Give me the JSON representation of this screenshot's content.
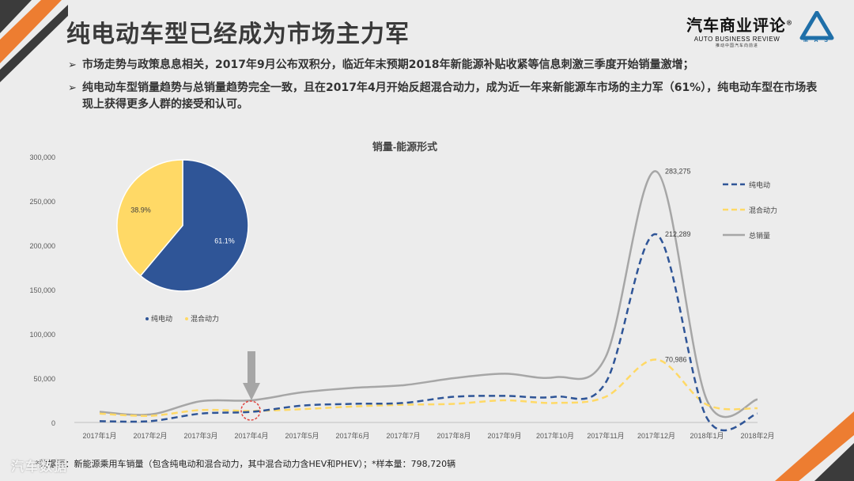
{
  "slide": {
    "title": "纯电动车型已经成为市场主力军",
    "logo": {
      "main": "汽车商业评论",
      "registered": "®",
      "english": "AUTO BUSINESS REVIEW",
      "subtitle": "推动中国汽车向前进",
      "mas": "M A S"
    },
    "bullets": [
      "市场走势与政策息息相关，2017年9月公布双积分，临近年末预期2018年新能源补贴收紧等信息刺激三季度开始销量激增；",
      "纯电动车型销量趋势与总销量趋势完全一致，且在2017年4月开始反超混合动力，成为近一年来新能源车市场的主力军（61%），纯电动车型在市场表现上获得更多人群的接受和认可。"
    ],
    "bullet_marker": "➢",
    "footnote": "*数据源：新能源乘用车销量（包含纯电动和混合动力，其中混合动力含HEV和PHEV）；*样本量：798,720辆",
    "watermark": "汽车数据"
  },
  "colors": {
    "blue": "#2f5597",
    "yellow": "#ffd966",
    "gray": "#a6a6a6",
    "orange": "#ed7d31",
    "dark": "#3b3b3b",
    "arrow": "#a6a6a6",
    "circle": "#e0443e"
  },
  "chart_data": [
    {
      "type": "line",
      "title": "销量-能源形式",
      "categories": [
        "2017年1月",
        "2017年2月",
        "2017年3月",
        "2017年4月",
        "2017年5月",
        "2017年6月",
        "2017年7月",
        "2017年8月",
        "2017年9月",
        "2017年10月",
        "2017年11月",
        "2017年12月",
        "2018年1月",
        "2018年2月"
      ],
      "ylim": [
        0,
        300000
      ],
      "yticks": [
        0,
        50000,
        100000,
        150000,
        200000,
        250000,
        300000
      ],
      "ytick_labels": [
        "0",
        "50,000",
        "100,000",
        "150,000",
        "200,000",
        "250,000",
        "300,000"
      ],
      "series": [
        {
          "name": "纯电动",
          "style": "dashed",
          "color": "#2f5597",
          "values": [
            1500,
            1500,
            10000,
            12000,
            19000,
            21000,
            22000,
            29000,
            30000,
            29000,
            45000,
            212289,
            5000,
            10000
          ]
        },
        {
          "name": "混合动力",
          "style": "dashed",
          "color": "#ffd966",
          "values": [
            10000,
            7500,
            14000,
            13000,
            15000,
            18000,
            20000,
            21000,
            25000,
            22000,
            29000,
            70986,
            20000,
            16000
          ]
        },
        {
          "name": "总销量",
          "style": "solid",
          "color": "#a6a6a6",
          "values": [
            12000,
            9000,
            24000,
            25000,
            34000,
            39000,
            42000,
            50000,
            55000,
            51000,
            74000,
            283275,
            25000,
            26000
          ]
        }
      ],
      "data_labels": [
        {
          "series": "总销量",
          "category": "2017年12月",
          "text": "283,275"
        },
        {
          "series": "纯电动",
          "category": "2017年12月",
          "text": "212,289"
        },
        {
          "series": "混合动力",
          "category": "2017年12月",
          "text": "70,986"
        }
      ],
      "legend_position": "right",
      "grid": false
    },
    {
      "type": "pie",
      "labels": [
        "纯电动",
        "混合动力"
      ],
      "values": [
        61.1,
        38.9
      ],
      "value_labels": [
        "61.1%",
        "38.9%"
      ],
      "colors": [
        "#2f5597",
        "#ffd966"
      ],
      "legend_position": "bottom"
    }
  ]
}
